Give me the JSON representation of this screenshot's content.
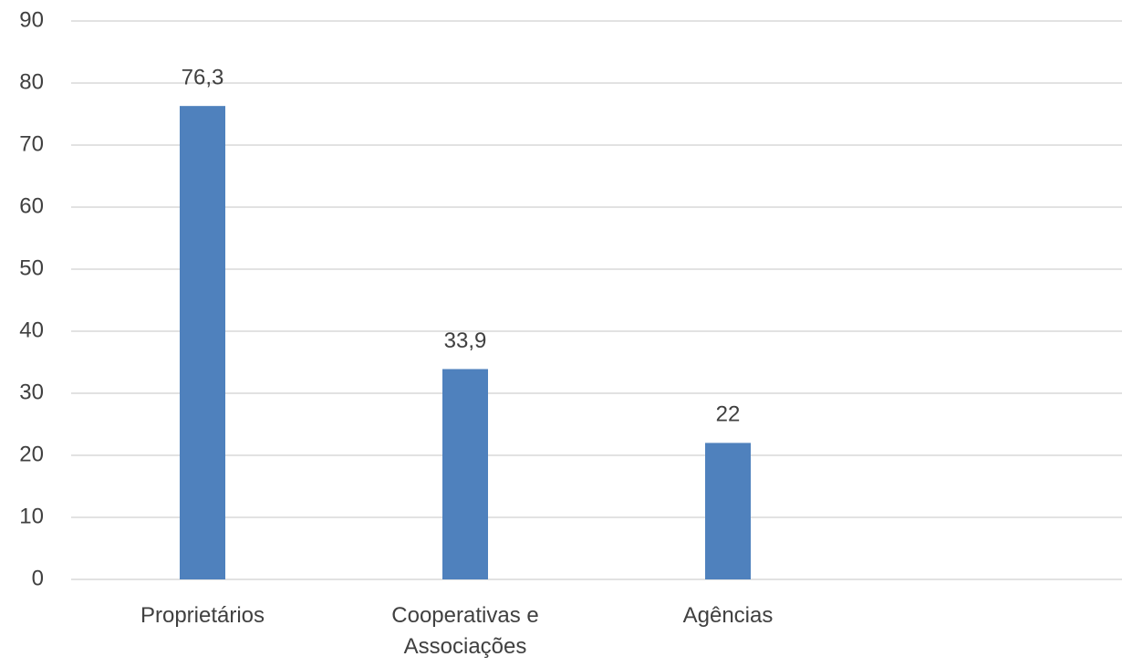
{
  "chart_data": {
    "type": "bar",
    "categories": [
      "Proprietários",
      "Cooperativas e Associações",
      "Agências",
      null
    ],
    "values": [
      76.3,
      33.9,
      22,
      null
    ],
    "value_labels": [
      "76,3",
      "33,9",
      "22",
      null
    ],
    "color": "#4f81bd",
    "ylim": [
      0,
      90
    ],
    "yticks": [
      0,
      10,
      20,
      30,
      40,
      50,
      60,
      70,
      80,
      90
    ],
    "grid": true
  }
}
